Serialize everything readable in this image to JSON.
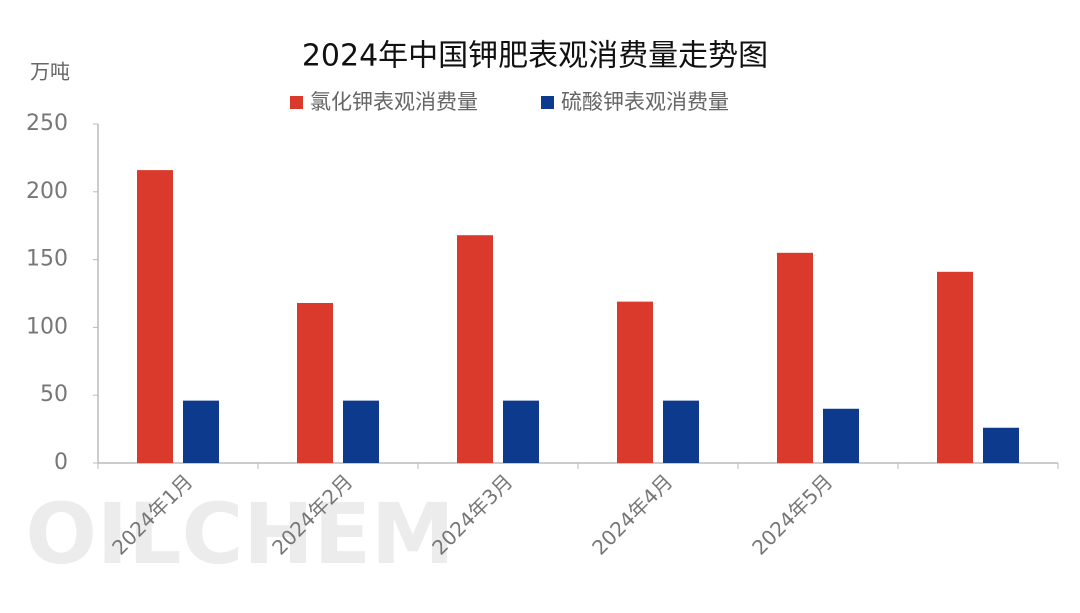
{
  "chart_data": {
    "type": "bar",
    "title": "2024年中国钾肥表观消费量走势图",
    "y_label": "万吨",
    "watermark": "OILCHEM",
    "categories": [
      "2024年1月",
      "2024年2月",
      "2024年3月",
      "2024年4月",
      "2024年5月",
      null
    ],
    "series": [
      {
        "name": "氯化钾表观消费量",
        "color": "#d93a2b",
        "values": [
          216,
          118,
          168,
          119,
          155,
          141
        ]
      },
      {
        "name": "硫酸钾表观消费量",
        "color": "#0d3a8c",
        "values": [
          46,
          46,
          46,
          46,
          40,
          26
        ]
      }
    ],
    "ylim": [
      0,
      250
    ],
    "yticks": [
      0,
      50,
      100,
      150,
      200,
      250
    ],
    "grid": false
  }
}
